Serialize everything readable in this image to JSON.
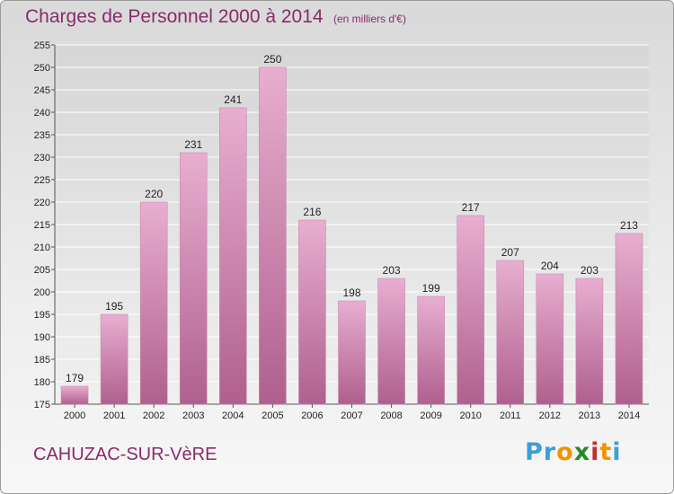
{
  "title": "Charges de Personnel 2000 à 2014",
  "subtitle": "(en milliers d'€)",
  "location": "CAHUZAC-SUR-VèRE",
  "logo": {
    "letters": [
      "P",
      "r",
      "o",
      "x",
      "i",
      "t",
      "i"
    ],
    "colors": [
      "#3aa0d8",
      "#3aa0d8",
      "#f39200",
      "#2a8a2a",
      "#c03030",
      "#f39200",
      "#3aa0d8"
    ]
  },
  "colors": {
    "bar_light": "#e8aed0",
    "bar_dark": "#b0608e",
    "title": "#8a2a6a"
  },
  "chart_data": {
    "type": "bar",
    "title": "Charges de Personnel 2000 à 2014",
    "categories": [
      "2000",
      "2001",
      "2002",
      "2003",
      "2004",
      "2005",
      "2006",
      "2007",
      "2008",
      "2009",
      "2010",
      "2011",
      "2012",
      "2013",
      "2014"
    ],
    "values": [
      179,
      195,
      220,
      231,
      241,
      250,
      216,
      198,
      203,
      199,
      217,
      207,
      204,
      203,
      213
    ],
    "ylim": [
      175,
      255
    ],
    "yticks": [
      175,
      180,
      185,
      190,
      195,
      200,
      205,
      210,
      215,
      220,
      225,
      230,
      235,
      240,
      245,
      250,
      255
    ],
    "grid": true,
    "data_labels": true
  }
}
